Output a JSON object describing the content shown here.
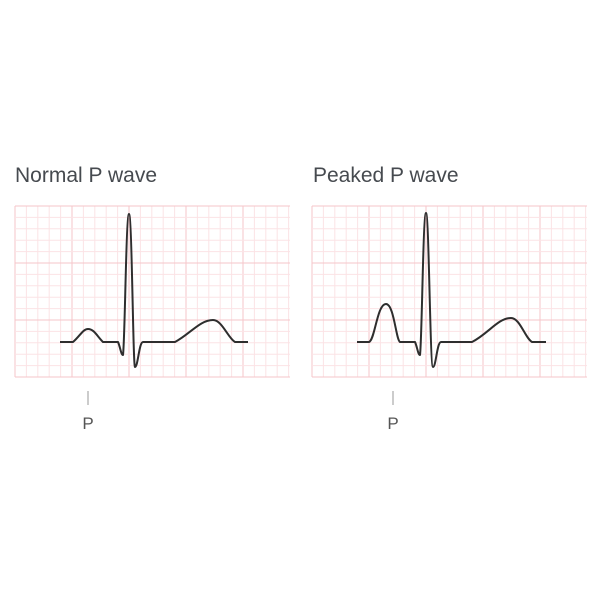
{
  "panels": [
    {
      "title": "Normal P wave",
      "marker_label": "P"
    },
    {
      "title": "Peaked P wave",
      "marker_label": "P"
    }
  ],
  "colors": {
    "grid_major": "#f5c6ca",
    "grid_minor": "#fbe3e5",
    "trace": "#2e2e2e",
    "text": "#464a4f"
  }
}
